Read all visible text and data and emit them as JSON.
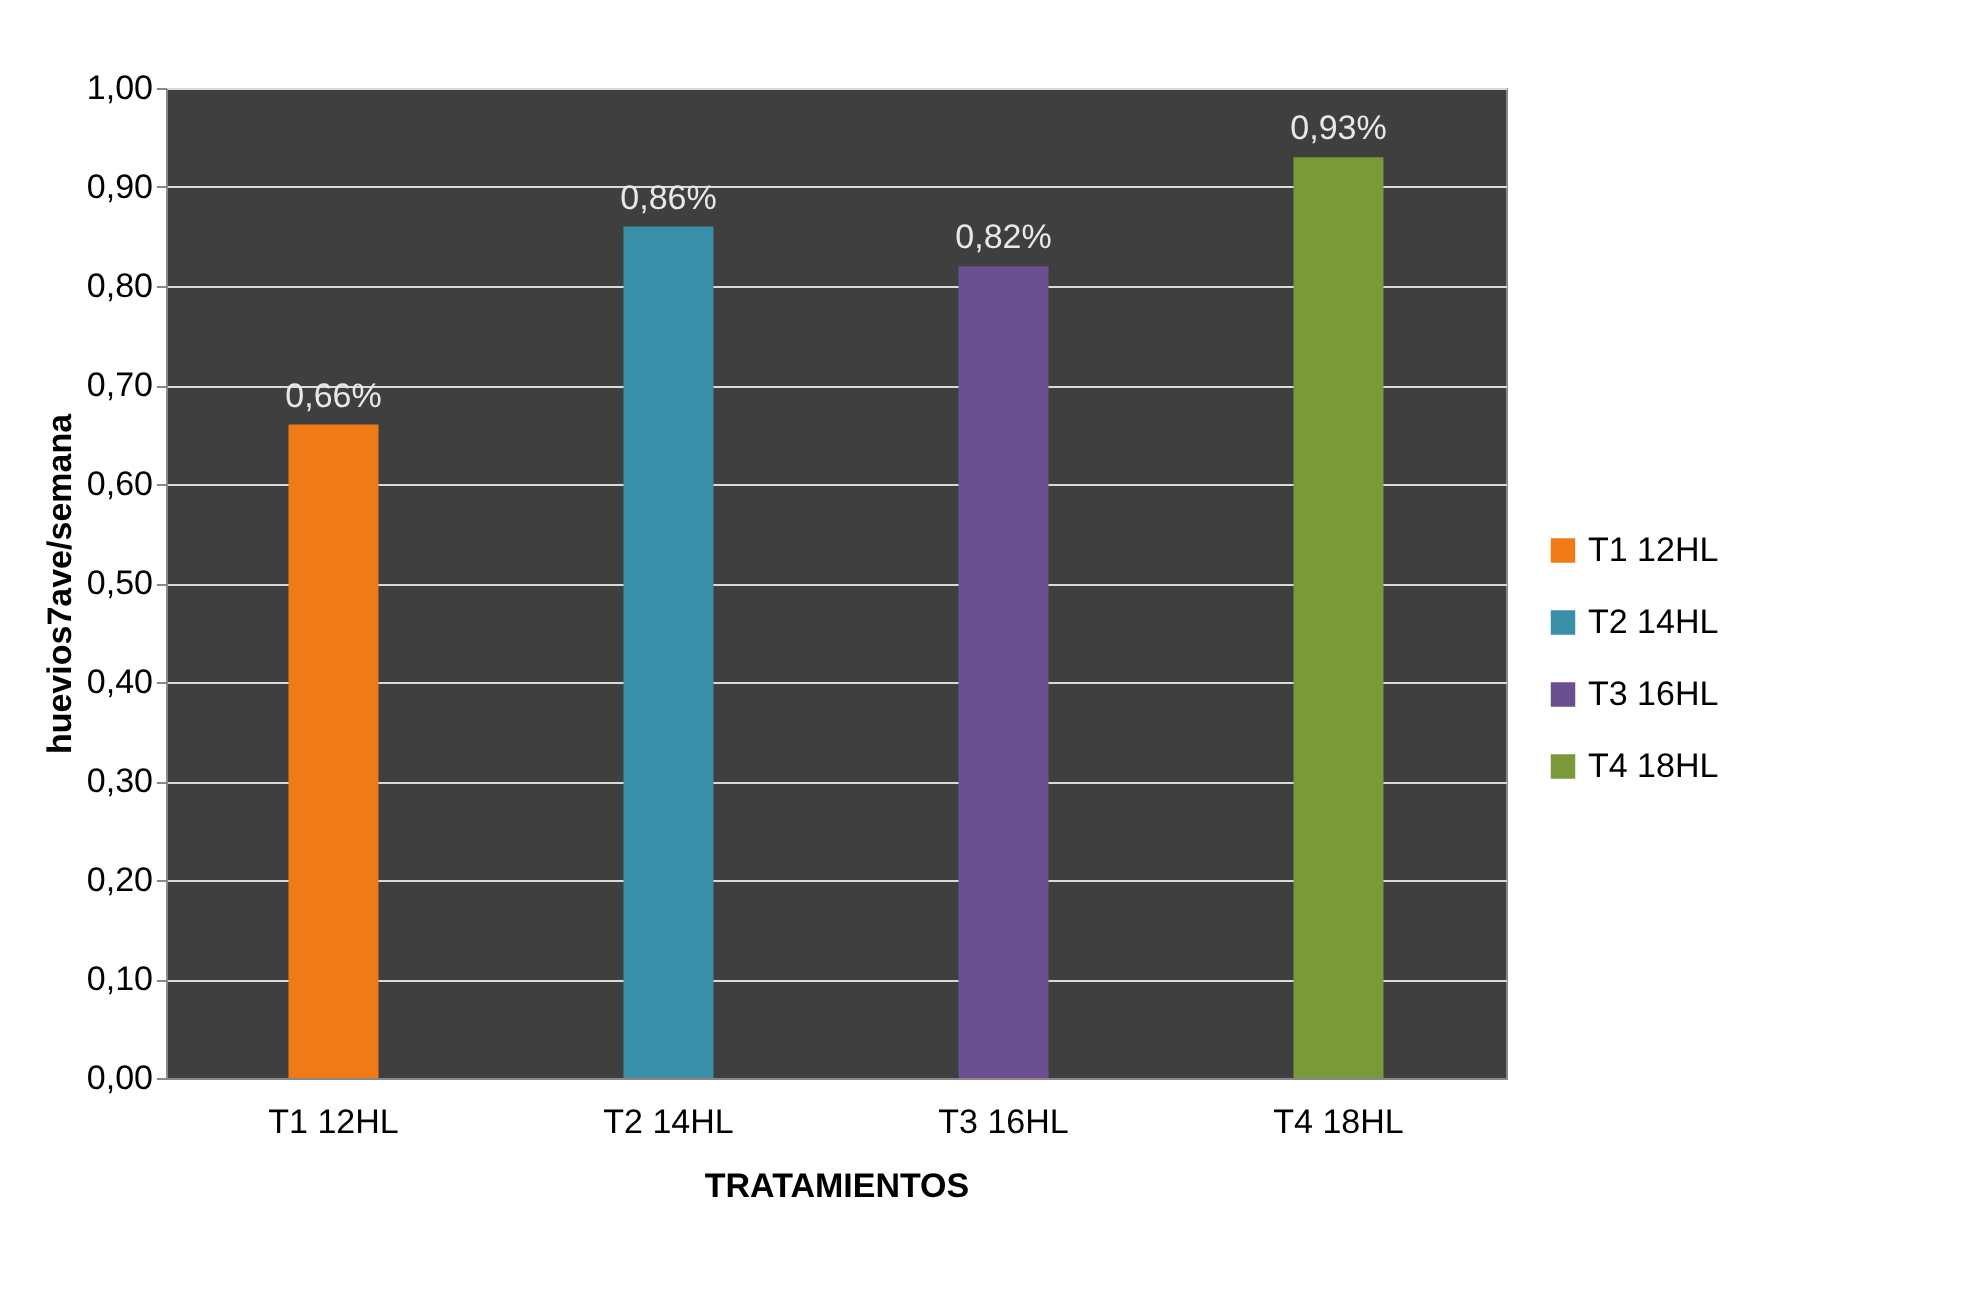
{
  "chart_data": {
    "type": "bar",
    "categories": [
      "T1 12HL",
      "T2 14HL",
      "T3 16HL",
      "T4 18HL"
    ],
    "series": [
      {
        "name": "T1 12HL",
        "color": "#f07a16",
        "values": [
          0.66,
          null,
          null,
          null
        ],
        "value_labels": [
          "0,66%",
          null,
          null,
          null
        ]
      },
      {
        "name": "T2 14HL",
        "color": "#3a8fa8",
        "values": [
          null,
          0.86,
          null,
          null
        ],
        "value_labels": [
          null,
          "0,86%",
          null,
          null
        ]
      },
      {
        "name": "T3 16HL",
        "color": "#6a5090",
        "values": [
          null,
          null,
          0.82,
          null
        ],
        "value_labels": [
          null,
          null,
          "0,82%",
          null
        ]
      },
      {
        "name": "T4 18HL",
        "color": "#7a9a3a",
        "values": [
          null,
          null,
          null,
          0.93
        ],
        "value_labels": [
          null,
          null,
          null,
          "0,93%"
        ]
      }
    ],
    "xlabel": "TRATAMIENTOS",
    "ylabel": "huevios7ave/semana",
    "ylim": [
      0,
      1
    ],
    "yticks": [
      {
        "value": 0,
        "label": "0,00"
      },
      {
        "value": 0.1,
        "label": "0,10"
      },
      {
        "value": 0.2,
        "label": "0,20"
      },
      {
        "value": 0.3,
        "label": "0,30"
      },
      {
        "value": 0.4,
        "label": "0,40"
      },
      {
        "value": 0.5,
        "label": "0,50"
      },
      {
        "value": 0.6,
        "label": "0,60"
      },
      {
        "value": 0.7,
        "label": "0,70"
      },
      {
        "value": 0.8,
        "label": "0,80"
      },
      {
        "value": 0.9,
        "label": "0,90"
      },
      {
        "value": 1,
        "label": "1,00"
      }
    ],
    "grid": true,
    "legend": "right"
  }
}
